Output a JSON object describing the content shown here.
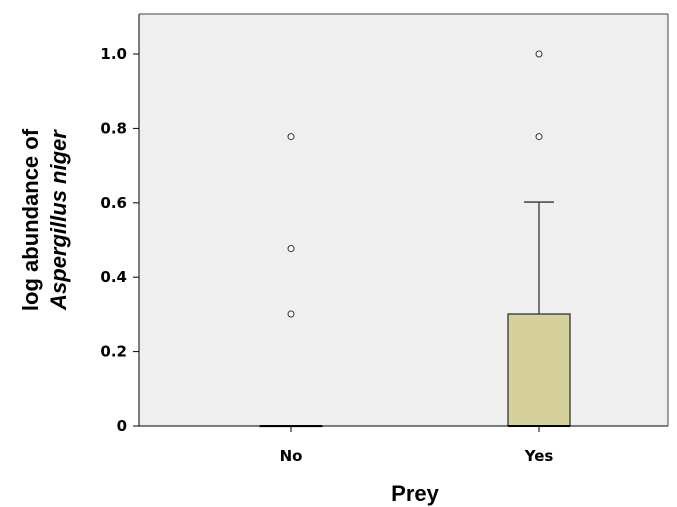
{
  "chart_data": {
    "type": "box",
    "xlabel": "Prey",
    "ylabel_line1": "log abundance of",
    "ylabel_line2": "Aspergillus niger",
    "ylim": [
      0,
      1.12
    ],
    "yticks": [
      {
        "value": 0,
        "label": "0"
      },
      {
        "value": 0.2,
        "label": "0.2"
      },
      {
        "value": 0.4,
        "label": "0.4"
      },
      {
        "value": 0.6,
        "label": "0.6"
      },
      {
        "value": 0.8,
        "label": "0.8"
      },
      {
        "value": 1.0,
        "label": "1.0"
      }
    ],
    "categories": [
      "No",
      "Yes"
    ],
    "boxes": [
      {
        "category": "No",
        "q1": 0,
        "median": 0,
        "q3": 0,
        "whisker_low": 0,
        "whisker_high": 0,
        "outliers": [
          0.301,
          0.477,
          0.778
        ]
      },
      {
        "category": "Yes",
        "q1": 0,
        "median": 0,
        "q3": 0.301,
        "whisker_low": 0,
        "whisker_high": 0.602,
        "outliers": [
          0.778,
          1.0
        ]
      }
    ],
    "colors": {
      "plot_background": "#efefef",
      "box_fill": "#d6d09a",
      "box_stroke": "#333333"
    }
  }
}
